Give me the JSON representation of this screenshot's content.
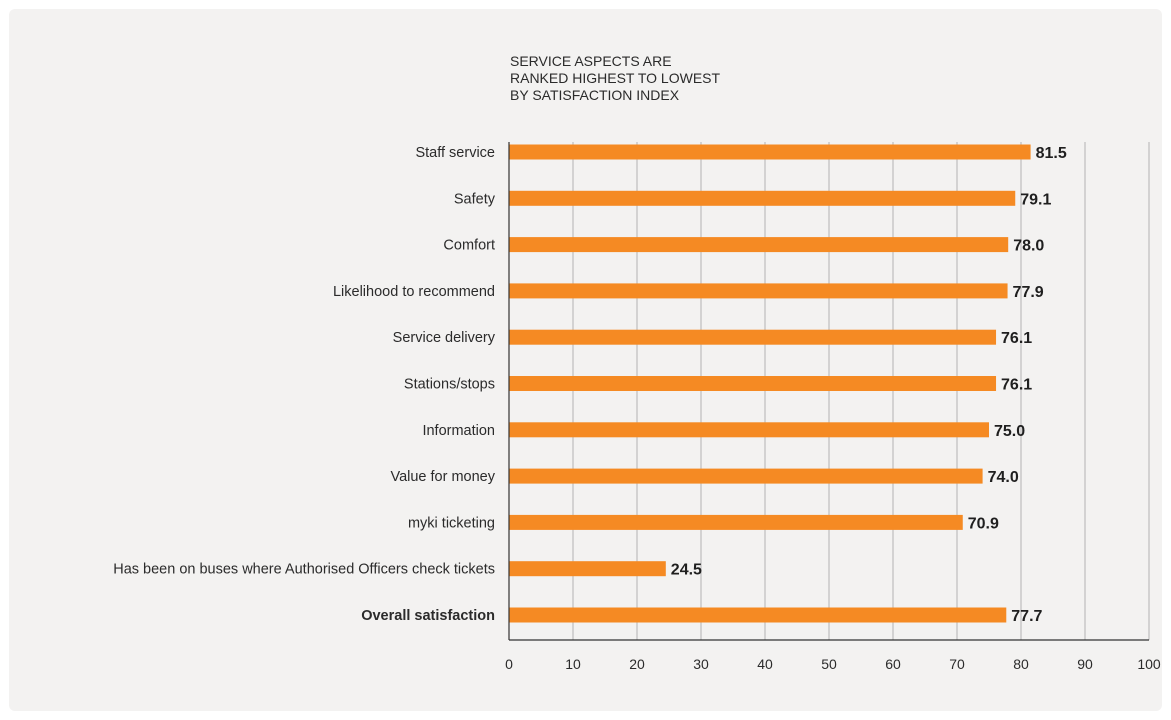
{
  "chart_data": {
    "type": "bar",
    "orientation": "horizontal",
    "title_lines": [
      "SERVICE ASPECTS ARE",
      "RANKED HIGHEST TO LOWEST",
      "BY SATISFACTION INDEX"
    ],
    "categories": [
      "Staff service",
      "Safety",
      "Comfort",
      "Likelihood to recommend",
      "Service delivery",
      "Stations/stops",
      "Information",
      "Value for money",
      "myki ticketing",
      "Has been on buses where Authorised Officers check tickets",
      "Overall satisfaction"
    ],
    "values": [
      81.5,
      79.1,
      78.0,
      77.9,
      76.1,
      76.1,
      75.0,
      74.0,
      70.9,
      24.5,
      77.7
    ],
    "value_labels": [
      "81.5",
      "79.1",
      "78.0",
      "77.9",
      "76.1",
      "76.1",
      "75.0",
      "74.0",
      "70.9",
      "24.5",
      "77.7"
    ],
    "highlight_category": "Overall satisfaction",
    "xlim": [
      0,
      100
    ],
    "xticks": [
      0,
      10,
      20,
      30,
      40,
      50,
      60,
      70,
      80,
      90,
      100
    ],
    "grid": "vertical",
    "bar_color": "#f58a23",
    "grid_color": "#b3b3b3",
    "axis_color": "#333333",
    "background_color": "#f3f2f1"
  }
}
